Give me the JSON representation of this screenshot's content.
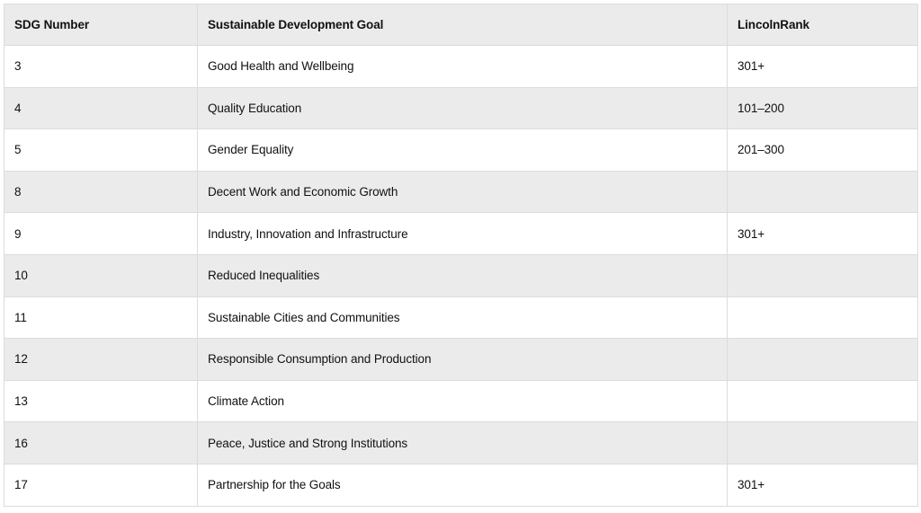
{
  "table": {
    "headers": [
      "SDG Number",
      "Sustainable Development Goal",
      "LincolnRank"
    ],
    "rows": [
      [
        "3",
        "Good Health and Wellbeing",
        "301+"
      ],
      [
        "4",
        "Quality Education",
        "101–200"
      ],
      [
        "5",
        "Gender Equality",
        "201–300"
      ],
      [
        "8",
        "Decent Work and Economic Growth",
        ""
      ],
      [
        "9",
        "Industry, Innovation and Infrastructure",
        "301+"
      ],
      [
        "10",
        "Reduced Inequalities",
        ""
      ],
      [
        "11",
        "Sustainable Cities and Communities",
        ""
      ],
      [
        "12",
        "Responsible Consumption and Production",
        ""
      ],
      [
        "13",
        "Climate Action",
        ""
      ],
      [
        "16",
        "Peace, Justice and Strong Institutions",
        ""
      ],
      [
        "17",
        "Partnership for the Goals",
        "301+"
      ]
    ]
  },
  "colors": {
    "header_bg": "#ebebeb",
    "stripe_bg": "#ebebeb",
    "row_bg": "#ffffff",
    "border": "#dcdcdc",
    "text": "#111111"
  }
}
